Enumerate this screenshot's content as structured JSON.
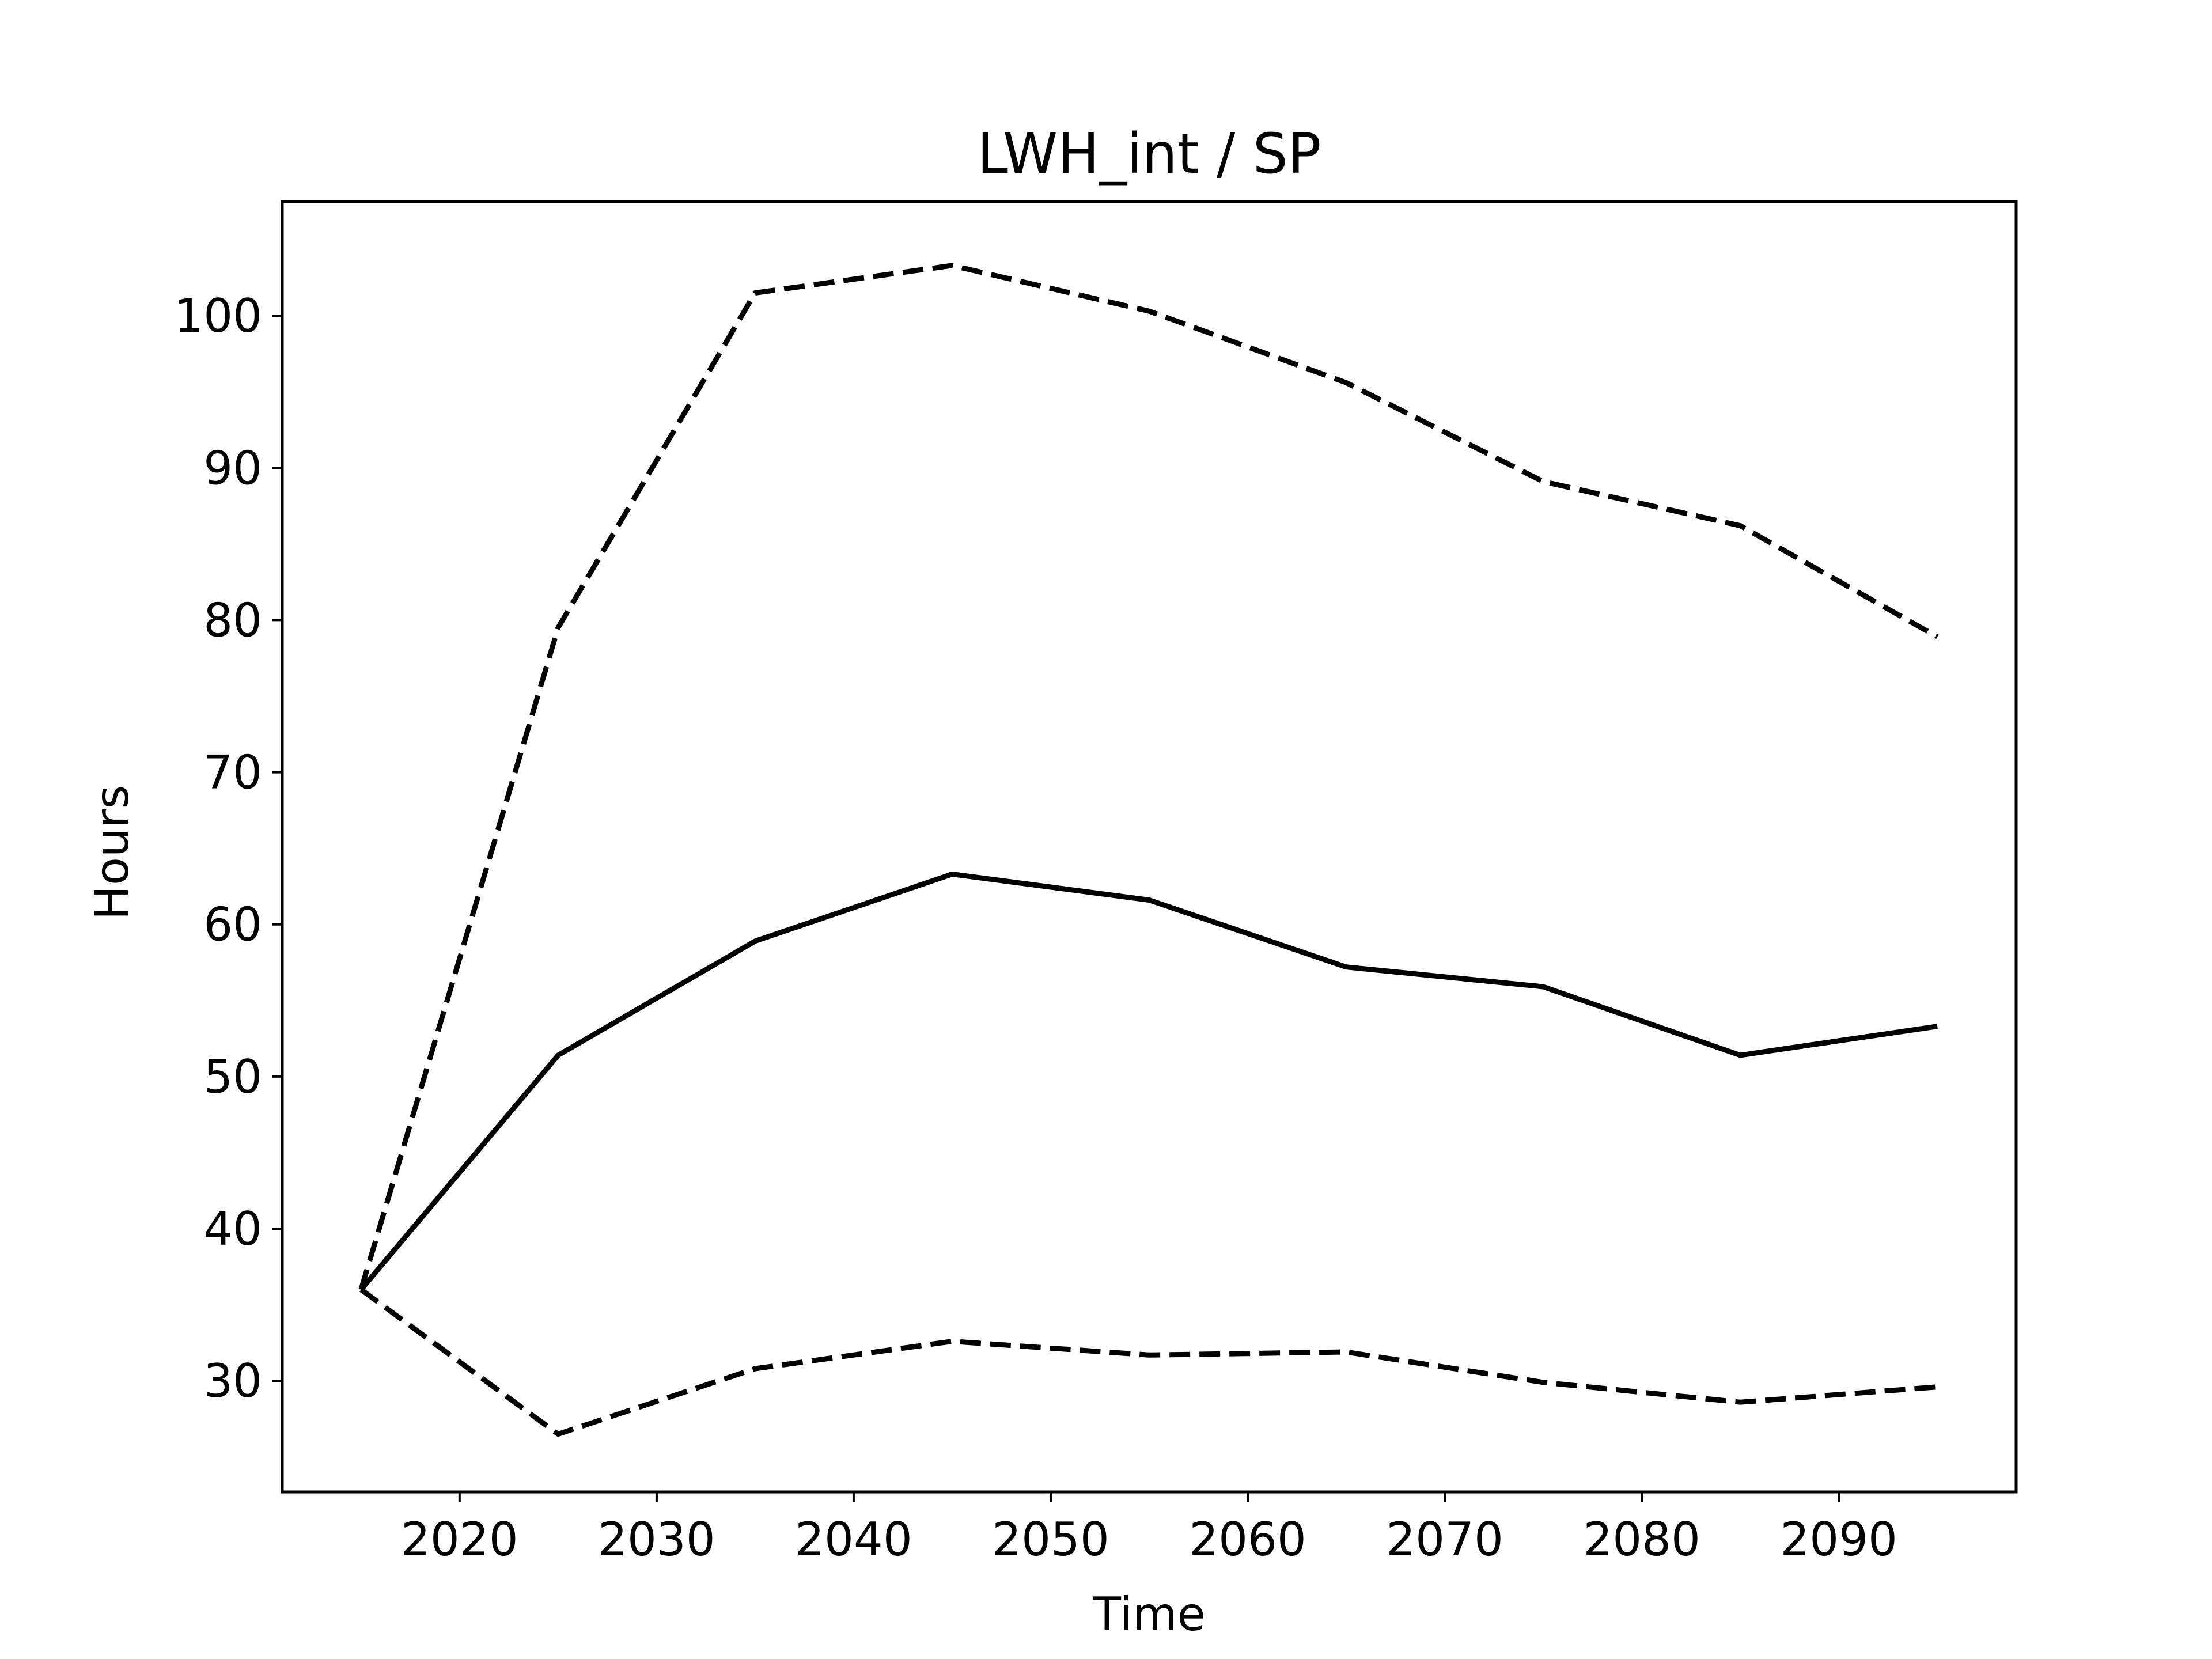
{
  "chart_data": {
    "type": "line",
    "title": "LWH_int / SP",
    "xlabel": "Time",
    "ylabel": "Hours",
    "x": [
      2015,
      2025,
      2035,
      2045,
      2055,
      2065,
      2075,
      2085,
      2095
    ],
    "series": [
      {
        "values": [
          36.0,
          51.4,
          58.9,
          63.3,
          61.6,
          57.2,
          55.9,
          51.4,
          53.3
        ],
        "line_style": "solid"
      },
      {
        "values": [
          36.0,
          79.5,
          101.5,
          103.3,
          100.3,
          95.6,
          89.1,
          86.2,
          78.9
        ],
        "line_style": "dashed"
      },
      {
        "values": [
          36.0,
          26.5,
          30.8,
          32.6,
          31.7,
          31.9,
          29.9,
          28.6,
          29.6
        ],
        "line_style": "dashed"
      }
    ],
    "xlim": [
      2011,
      2099
    ],
    "ylim": [
      22.7,
      107.5
    ],
    "xticks": [
      2020,
      2030,
      2040,
      2050,
      2060,
      2070,
      2080,
      2090
    ],
    "yticks": [
      30,
      40,
      50,
      60,
      70,
      80,
      90,
      100
    ],
    "grid": false,
    "line_color": "#000000"
  }
}
